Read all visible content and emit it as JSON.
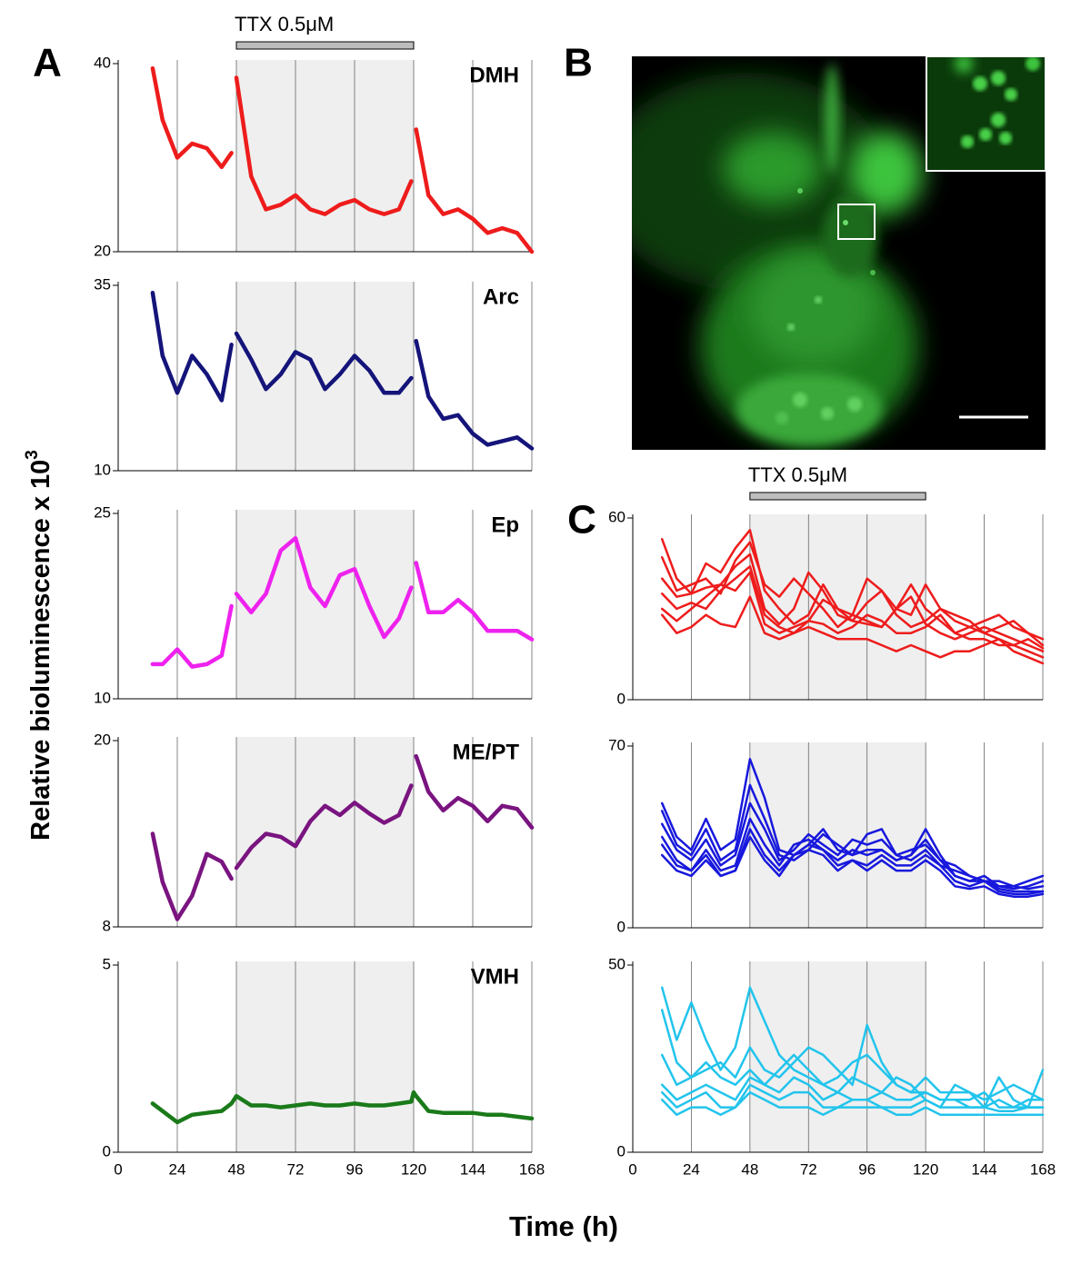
{
  "panel_labels": [
    "A",
    "B",
    "C"
  ],
  "ylabel": "Relative bioluminescence x 10",
  "ylabel_exponent": "3",
  "xlabel": "Time (h)",
  "chart_data": [
    {
      "type": "line",
      "title": "DMH",
      "color": "#ee1c1c",
      "annotation": {
        "text": "TTX 0.5μM",
        "range": [
          48,
          120
        ]
      },
      "shaded_range": [
        48,
        120
      ],
      "x": [
        14,
        18,
        24,
        30,
        36,
        42,
        46,
        47,
        48,
        54,
        60,
        66,
        72,
        78,
        84,
        90,
        96,
        102,
        108,
        114,
        119,
        120,
        121,
        126,
        132,
        138,
        144,
        150,
        156,
        162,
        168
      ],
      "values": [
        39.5,
        34,
        30,
        31.5,
        31,
        29,
        30.5,
        null,
        38.5,
        28,
        24.5,
        25,
        26,
        24.5,
        24,
        25,
        25.5,
        24.5,
        24,
        24.5,
        27.5,
        null,
        33,
        26,
        24,
        24.5,
        23.5,
        22,
        22.5,
        22,
        20
      ],
      "xlim": [
        0,
        168
      ],
      "xticks": [
        0,
        24,
        48,
        72,
        96,
        120,
        144,
        168
      ],
      "xtick_labels": false,
      "ylim": [
        20,
        40
      ],
      "yticks": [
        20,
        40
      ]
    },
    {
      "type": "line",
      "title": "Arc",
      "color": "#14147a",
      "shaded_range": [
        48,
        120
      ],
      "x": [
        14,
        18,
        24,
        30,
        36,
        42,
        46,
        47,
        48,
        54,
        60,
        66,
        72,
        78,
        84,
        90,
        96,
        102,
        108,
        114,
        119,
        120,
        121,
        126,
        132,
        138,
        144,
        150,
        156,
        162,
        168
      ],
      "values": [
        34,
        25.5,
        20.5,
        25.5,
        23,
        19.5,
        27,
        null,
        28.5,
        25,
        21,
        23,
        26,
        25,
        21,
        23,
        25.5,
        23.5,
        20.5,
        20.5,
        22.5,
        null,
        27.5,
        20,
        17,
        17.5,
        15,
        13.5,
        14,
        14.5,
        13
      ],
      "xlim": [
        0,
        168
      ],
      "xticks": [
        0,
        24,
        48,
        72,
        96,
        120,
        144,
        168
      ],
      "xtick_labels": false,
      "ylim": [
        10,
        35
      ],
      "yticks": [
        10,
        35
      ]
    },
    {
      "type": "line",
      "title": "Ep",
      "color": "#ee22ee",
      "shaded_range": [
        48,
        120
      ],
      "x": [
        14,
        18,
        24,
        30,
        36,
        42,
        46,
        47,
        48,
        54,
        60,
        66,
        72,
        78,
        84,
        90,
        96,
        102,
        108,
        114,
        119,
        120,
        121,
        126,
        132,
        138,
        144,
        150,
        156,
        162,
        168
      ],
      "values": [
        12.8,
        12.8,
        14,
        12.6,
        12.8,
        13.5,
        17.5,
        null,
        18.5,
        17,
        18.5,
        22,
        23,
        19,
        17.5,
        20,
        20.5,
        17.5,
        15,
        16.5,
        19,
        null,
        21,
        17,
        17,
        18,
        17,
        15.5,
        15.5,
        15.5,
        14.8
      ],
      "xlim": [
        0,
        168
      ],
      "xticks": [
        0,
        24,
        48,
        72,
        96,
        120,
        144,
        168
      ],
      "xtick_labels": false,
      "ylim": [
        10,
        25
      ],
      "yticks": [
        10,
        25
      ]
    },
    {
      "type": "line",
      "title": "ME/PT",
      "color": "#7a1480",
      "shaded_range": [
        48,
        120
      ],
      "x": [
        14,
        18,
        24,
        30,
        36,
        42,
        46,
        47,
        48,
        54,
        60,
        66,
        72,
        78,
        84,
        90,
        96,
        102,
        108,
        114,
        119,
        120,
        121,
        126,
        132,
        138,
        144,
        150,
        156,
        162,
        168
      ],
      "values": [
        14,
        10.9,
        8.5,
        10,
        12.7,
        12.2,
        11.1,
        null,
        11.8,
        13.1,
        14,
        13.8,
        13.2,
        14.8,
        15.8,
        15.2,
        16,
        15.3,
        14.7,
        15.2,
        17.1,
        null,
        19,
        16.7,
        15.5,
        16.3,
        15.8,
        14.8,
        15.8,
        15.6,
        14.4
      ],
      "xlim": [
        0,
        168
      ],
      "xticks": [
        0,
        24,
        48,
        72,
        96,
        120,
        144,
        168
      ],
      "xtick_labels": false,
      "ylim": [
        8,
        20
      ],
      "yticks": [
        8,
        20
      ]
    },
    {
      "type": "line",
      "title": "VMH",
      "color": "#1a7a1a",
      "shaded_range": [
        48,
        120
      ],
      "x": [
        14,
        18,
        24,
        30,
        36,
        42,
        46,
        47,
        48,
        54,
        60,
        66,
        72,
        78,
        84,
        90,
        96,
        102,
        108,
        114,
        119,
        120,
        121,
        126,
        132,
        138,
        144,
        150,
        156,
        162,
        168
      ],
      "values": [
        1.3,
        1.1,
        0.8,
        1.0,
        1.05,
        1.1,
        1.3,
        1.4,
        1.5,
        1.25,
        1.25,
        1.2,
        1.25,
        1.3,
        1.25,
        1.25,
        1.3,
        1.25,
        1.25,
        1.3,
        1.35,
        1.6,
        1.5,
        1.1,
        1.05,
        1.05,
        1.05,
        1.0,
        1.0,
        0.95,
        0.9
      ],
      "xlim": [
        0,
        168
      ],
      "xticks": [
        0,
        24,
        48,
        72,
        96,
        120,
        144,
        168
      ],
      "xtick_labels": true,
      "ylim": [
        0,
        5
      ],
      "yticks": [
        0,
        5
      ]
    },
    {
      "type": "line",
      "annotation": {
        "text": "TTX 0.5μM",
        "range": [
          48,
          120
        ]
      },
      "shaded_range": [
        48,
        120
      ],
      "x": [
        12,
        18,
        24,
        30,
        36,
        42,
        48,
        54,
        60,
        66,
        72,
        78,
        84,
        90,
        96,
        102,
        108,
        114,
        120,
        126,
        132,
        138,
        144,
        150,
        156,
        162,
        168
      ],
      "series": [
        {
          "color": "#ee1c1c",
          "values": [
            53,
            40,
            35,
            45,
            42,
            50,
            56,
            36,
            30,
            25,
            28,
            38,
            30,
            26,
            25,
            24,
            30,
            38,
            30,
            26,
            22,
            24,
            26,
            28,
            24,
            22,
            20
          ]
        },
        {
          "color": "#ee1c1c",
          "values": [
            47,
            36,
            38,
            40,
            35,
            46,
            52,
            38,
            34,
            40,
            35,
            30,
            24,
            28,
            40,
            36,
            30,
            28,
            38,
            30,
            26,
            24,
            22,
            24,
            26,
            22,
            18
          ]
        },
        {
          "color": "#ee1c1c",
          "values": [
            40,
            34,
            35,
            37,
            38,
            44,
            48,
            30,
            25,
            30,
            42,
            36,
            28,
            26,
            32,
            36,
            28,
            24,
            26,
            30,
            28,
            26,
            22,
            20,
            18,
            20,
            17
          ]
        },
        {
          "color": "#ee1c1c",
          "values": [
            35,
            30,
            32,
            30,
            36,
            40,
            44,
            28,
            24,
            22,
            26,
            33,
            30,
            28,
            26,
            24,
            30,
            34,
            25,
            22,
            20,
            22,
            24,
            22,
            20,
            18,
            16
          ]
        },
        {
          "color": "#ee1c1c",
          "values": [
            30,
            26,
            30,
            34,
            38,
            36,
            42,
            25,
            22,
            24,
            26,
            25,
            22,
            24,
            28,
            26,
            22,
            22,
            24,
            28,
            22,
            20,
            20,
            18,
            18,
            16,
            14
          ]
        },
        {
          "color": "#ee1c1c",
          "values": [
            28,
            22,
            24,
            28,
            25,
            24,
            34,
            22,
            20,
            22,
            24,
            22,
            20,
            20,
            20,
            18,
            16,
            18,
            16,
            14,
            16,
            16,
            18,
            20,
            16,
            14,
            12
          ]
        }
      ],
      "xlim": [
        0,
        168
      ],
      "xticks": [
        0,
        24,
        48,
        72,
        96,
        120,
        144,
        168
      ],
      "xtick_labels": false,
      "ylim": [
        0,
        60
      ],
      "yticks": [
        0,
        60
      ]
    },
    {
      "type": "line",
      "shaded_range": [
        48,
        120
      ],
      "x": [
        12,
        18,
        24,
        30,
        36,
        42,
        48,
        54,
        60,
        66,
        72,
        78,
        84,
        90,
        96,
        102,
        108,
        114,
        120,
        126,
        132,
        138,
        144,
        150,
        156,
        162,
        168
      ],
      "series": [
        {
          "color": "#1818dd",
          "values": [
            48,
            35,
            30,
            42,
            30,
            34,
            65,
            50,
            30,
            28,
            32,
            38,
            30,
            28,
            36,
            38,
            28,
            30,
            32,
            26,
            24,
            20,
            18,
            18,
            16,
            18,
            20
          ]
        },
        {
          "color": "#1818dd",
          "values": [
            45,
            32,
            28,
            38,
            26,
            30,
            55,
            42,
            28,
            26,
            30,
            36,
            32,
            28,
            30,
            30,
            26,
            28,
            38,
            28,
            20,
            18,
            20,
            16,
            15,
            16,
            18
          ]
        },
        {
          "color": "#1818dd",
          "values": [
            40,
            30,
            26,
            34,
            24,
            28,
            48,
            38,
            26,
            30,
            36,
            32,
            28,
            34,
            32,
            34,
            28,
            26,
            30,
            24,
            22,
            20,
            18,
            16,
            16,
            15,
            16
          ]
        },
        {
          "color": "#1818dd",
          "values": [
            35,
            26,
            22,
            30,
            22,
            24,
            42,
            32,
            24,
            32,
            34,
            30,
            26,
            30,
            28,
            30,
            26,
            28,
            34,
            26,
            20,
            18,
            18,
            15,
            14,
            14,
            14
          ]
        },
        {
          "color": "#1818dd",
          "values": [
            32,
            24,
            22,
            28,
            20,
            22,
            38,
            28,
            22,
            28,
            32,
            30,
            24,
            26,
            24,
            28,
            24,
            24,
            28,
            24,
            18,
            16,
            18,
            14,
            13,
            13,
            14
          ]
        },
        {
          "color": "#1818dd",
          "values": [
            28,
            22,
            20,
            26,
            20,
            22,
            35,
            26,
            20,
            28,
            30,
            28,
            22,
            26,
            22,
            26,
            22,
            22,
            26,
            22,
            16,
            15,
            16,
            13,
            12,
            12,
            13
          ]
        }
      ],
      "xlim": [
        0,
        168
      ],
      "xticks": [
        0,
        24,
        48,
        72,
        96,
        120,
        144,
        168
      ],
      "xtick_labels": false,
      "ylim": [
        0,
        70
      ],
      "yticks": [
        0,
        70
      ]
    },
    {
      "type": "line",
      "shaded_range": [
        48,
        120
      ],
      "x": [
        12,
        18,
        24,
        30,
        36,
        42,
        48,
        54,
        60,
        66,
        72,
        78,
        84,
        90,
        96,
        102,
        108,
        114,
        120,
        126,
        132,
        138,
        144,
        150,
        156,
        162,
        168
      ],
      "series": [
        {
          "color": "#22c4ec",
          "values": [
            44,
            30,
            40,
            30,
            22,
            28,
            44,
            35,
            26,
            22,
            20,
            18,
            16,
            14,
            14,
            16,
            20,
            18,
            14,
            12,
            18,
            16,
            12,
            20,
            14,
            12,
            22
          ]
        },
        {
          "color": "#22c4ec",
          "values": [
            38,
            24,
            20,
            22,
            24,
            20,
            28,
            22,
            20,
            24,
            28,
            26,
            22,
            18,
            34,
            24,
            18,
            16,
            16,
            14,
            14,
            12,
            12,
            14,
            12,
            12,
            12
          ]
        },
        {
          "color": "#22c4ec",
          "values": [
            26,
            18,
            20,
            24,
            20,
            18,
            22,
            18,
            22,
            26,
            22,
            18,
            20,
            24,
            26,
            22,
            18,
            16,
            20,
            16,
            16,
            16,
            14,
            16,
            18,
            16,
            14
          ]
        },
        {
          "color": "#22c4ec",
          "values": [
            18,
            14,
            16,
            18,
            16,
            14,
            20,
            18,
            16,
            20,
            18,
            14,
            16,
            20,
            18,
            16,
            14,
            14,
            16,
            14,
            14,
            14,
            16,
            12,
            12,
            14,
            14
          ]
        },
        {
          "color": "#22c4ec",
          "values": [
            16,
            12,
            14,
            16,
            12,
            12,
            18,
            16,
            14,
            16,
            16,
            12,
            12,
            14,
            14,
            12,
            12,
            12,
            14,
            12,
            12,
            12,
            12,
            11,
            11,
            12,
            12
          ]
        },
        {
          "color": "#22c4ec",
          "values": [
            14,
            10,
            12,
            12,
            10,
            12,
            16,
            14,
            12,
            12,
            12,
            10,
            12,
            12,
            12,
            12,
            10,
            10,
            12,
            10,
            10,
            10,
            10,
            10,
            10,
            10,
            10
          ]
        }
      ],
      "xlim": [
        0,
        168
      ],
      "xticks": [
        0,
        24,
        48,
        72,
        96,
        120,
        144,
        168
      ],
      "xtick_labels": true,
      "ylim": [
        0,
        50
      ],
      "yticks": [
        0,
        50
      ]
    }
  ]
}
